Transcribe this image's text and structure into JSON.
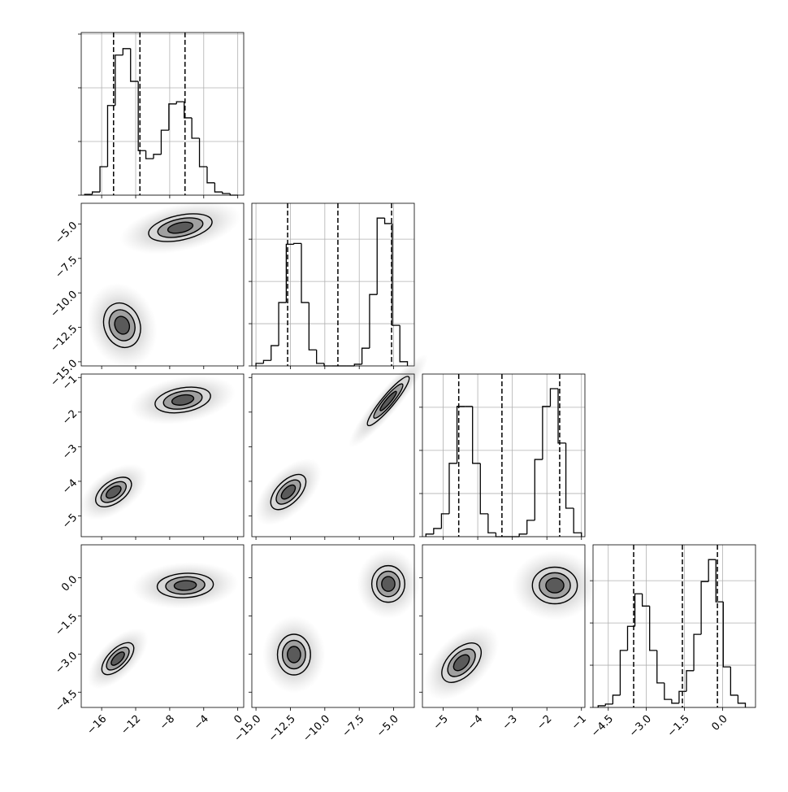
{
  "chart_data": {
    "type": "corner",
    "params": [
      {
        "lim": [
          -18.4,
          0.7
        ],
        "ticks": [
          {
            "value": -16,
            "label": "−16"
          },
          {
            "value": -12,
            "label": "−12"
          },
          {
            "value": -8,
            "label": "−8"
          },
          {
            "value": -4,
            "label": "−4"
          },
          0
        ]
      },
      {
        "lim": [
          -15.3,
          -3.5
        ],
        "ticks": [
          {
            "value": -15,
            "label": "−15.0"
          },
          {
            "value": -12.5,
            "label": "−12.5"
          },
          {
            "value": -10,
            "label": "−10.0"
          },
          {
            "value": -7.5,
            "label": "−7.5"
          },
          {
            "value": -5,
            "label": "−5.0"
          }
        ]
      },
      {
        "lim": [
          -5.6,
          -0.9
        ],
        "ticks": [
          {
            "value": -5,
            "label": "−5"
          },
          {
            "value": -4,
            "label": "−4"
          },
          {
            "value": -3,
            "label": "−3"
          },
          {
            "value": -2,
            "label": "−2"
          },
          {
            "value": -1,
            "label": "−1"
          }
        ]
      },
      {
        "lim": [
          -5.1,
          1.3
        ],
        "ticks": [
          {
            "value": -4.5,
            "label": "−4.5"
          },
          {
            "value": -3,
            "label": "−3.0"
          },
          {
            "value": -1.5,
            "label": "−1.5"
          },
          {
            "value": 0,
            "label": "0.0"
          }
        ]
      }
    ],
    "histograms": [
      {
        "bins": [
          -18,
          -17.1,
          -16.2,
          -15.3,
          -14.4,
          -13.5,
          -12.6,
          -11.7,
          -10.8,
          -9.9,
          -9,
          -8.1,
          -7.2,
          -6.3,
          -5.4,
          -4.5,
          -3.6,
          -2.7,
          -1.8,
          -0.9,
          0
        ],
        "values": [
          15,
          60,
          530,
          1670,
          2610,
          2730,
          2120,
          830,
          680,
          760,
          1210,
          1700,
          1740,
          1440,
          1060,
          530,
          230,
          60,
          30,
          0
        ],
        "quantiles": [
          -14.6,
          -11.5,
          -6.2
        ],
        "ylim": [
          0,
          3030
        ],
        "yticks": [
          0,
          1000,
          2000,
          3000
        ],
        "grid": true
      },
      {
        "bins": [
          -15,
          -14.45,
          -13.9,
          -13.35,
          -12.8,
          -12.25,
          -11.7,
          -11.15,
          -10.6,
          -10.05,
          -9.5,
          -8.95,
          -8.4,
          -7.85,
          -7.3,
          -6.75,
          -6.2,
          -5.65,
          -5.1,
          -4.55,
          -4
        ],
        "values": [
          60,
          130,
          480,
          1500,
          2880,
          2900,
          1500,
          380,
          60,
          0,
          0,
          0,
          0,
          40,
          420,
          1690,
          3500,
          3370,
          960,
          100
        ],
        "quantiles": [
          -12.7,
          -9.05,
          -5.15
        ],
        "ylim": [
          0,
          3850
        ],
        "yticks": [
          0,
          1000,
          2000,
          3000
        ],
        "grid": true
      },
      {
        "bins": [
          -5.5,
          -5.275,
          -5.05,
          -4.825,
          -4.6,
          -4.375,
          -4.15,
          -3.925,
          -3.7,
          -3.475,
          -3.25,
          -3.025,
          -2.8,
          -2.575,
          -2.35,
          -2.125,
          -1.9,
          -1.675,
          -1.45,
          -1.225,
          -1
        ],
        "values": [
          60,
          190,
          530,
          1700,
          3020,
          3020,
          1700,
          530,
          90,
          0,
          0,
          0,
          60,
          380,
          1790,
          3020,
          3430,
          2170,
          660,
          90
        ],
        "quantiles": [
          -4.55,
          -3.3,
          -1.63
        ],
        "ylim": [
          0,
          3770
        ],
        "yticks": [
          0,
          1000,
          2000,
          3000
        ],
        "grid": true
      },
      {
        "bins": [
          -4.9,
          -4.61,
          -4.32,
          -4.03,
          -3.74,
          -3.45,
          -3.16,
          -2.87,
          -2.58,
          -2.29,
          -2,
          -1.71,
          -1.42,
          -1.13,
          -0.84,
          -0.55,
          -0.26,
          0.03,
          0.32,
          0.61,
          0.9
        ],
        "values": [
          40,
          80,
          290,
          1350,
          1920,
          2690,
          2400,
          1350,
          580,
          190,
          100,
          380,
          870,
          1730,
          2980,
          3500,
          2500,
          960,
          290,
          100
        ],
        "quantiles": [
          -3.5,
          -1.58,
          -0.2
        ],
        "ylim": [
          0,
          3850
        ],
        "yticks": [
          0,
          1000,
          2000,
          3000
        ],
        "grid": true
      }
    ],
    "pairs": [
      {
        "modes": [
          {
            "cx": -6.75,
            "cy": -5.27,
            "rx": [
              3.8,
              2.7,
              1.5
            ],
            "ry": [
              0.9,
              0.63,
              0.36
            ],
            "rotation": -12
          },
          {
            "cx": -13.6,
            "cy": -12.35,
            "rx": [
              2.1,
              1.47,
              0.84
            ],
            "ry": [
              1.65,
              1.15,
              0.66
            ],
            "rotation": -20
          }
        ]
      },
      {
        "modes": [
          {
            "cx": -6.46,
            "cy": -1.65,
            "rx": [
              3.3,
              2.3,
              1.3
            ],
            "ry": [
              0.35,
              0.25,
              0.14
            ],
            "rotation": -10
          },
          {
            "cx": -14.6,
            "cy": -4.31,
            "rx": [
              2.4,
              1.7,
              1.0
            ],
            "ry": [
              0.32,
              0.22,
              0.13
            ],
            "rotation": -35
          }
        ]
      },
      {
        "modes": [
          {
            "cx": -5.39,
            "cy": -1.68,
            "rx": [
              2.3,
              1.6,
              0.9
            ],
            "ry": [
              0.18,
              0.13,
              0.07
            ],
            "rotation": -50
          },
          {
            "cx": -12.65,
            "cy": -4.31,
            "rx": [
              1.6,
              1.1,
              0.64
            ],
            "ry": [
              0.33,
              0.23,
              0.13
            ],
            "rotation": -45
          }
        ]
      },
      {
        "modes": [
          {
            "cx": -6.17,
            "cy": -0.3,
            "rx": [
              3.3,
              2.3,
              1.3
            ],
            "ry": [
              0.48,
              0.34,
              0.19
            ],
            "rotation": -3
          },
          {
            "cx": -14.1,
            "cy": -3.18,
            "rx": [
              2.4,
              1.7,
              1.0
            ],
            "ry": [
              0.38,
              0.27,
              0.15
            ],
            "rotation": -45
          }
        ]
      },
      {
        "modes": [
          {
            "cx": -5.39,
            "cy": -0.24,
            "rx": [
              1.2,
              0.84,
              0.48
            ],
            "ry": [
              0.72,
              0.5,
              0.29
            ],
            "rotation": 0
          },
          {
            "cx": -12.24,
            "cy": -3.02,
            "rx": [
              1.2,
              0.84,
              0.48
            ],
            "ry": [
              0.8,
              0.56,
              0.32
            ],
            "rotation": 0
          }
        ]
      },
      {
        "modes": [
          {
            "cx": -1.77,
            "cy": -0.3,
            "rx": [
              0.65,
              0.45,
              0.26
            ],
            "ry": [
              0.72,
              0.5,
              0.29
            ],
            "rotation": 0
          },
          {
            "cx": -4.47,
            "cy": -3.34,
            "rx": [
              0.7,
              0.49,
              0.28
            ],
            "ry": [
              0.54,
              0.38,
              0.22
            ],
            "rotation": -45
          }
        ]
      }
    ]
  }
}
